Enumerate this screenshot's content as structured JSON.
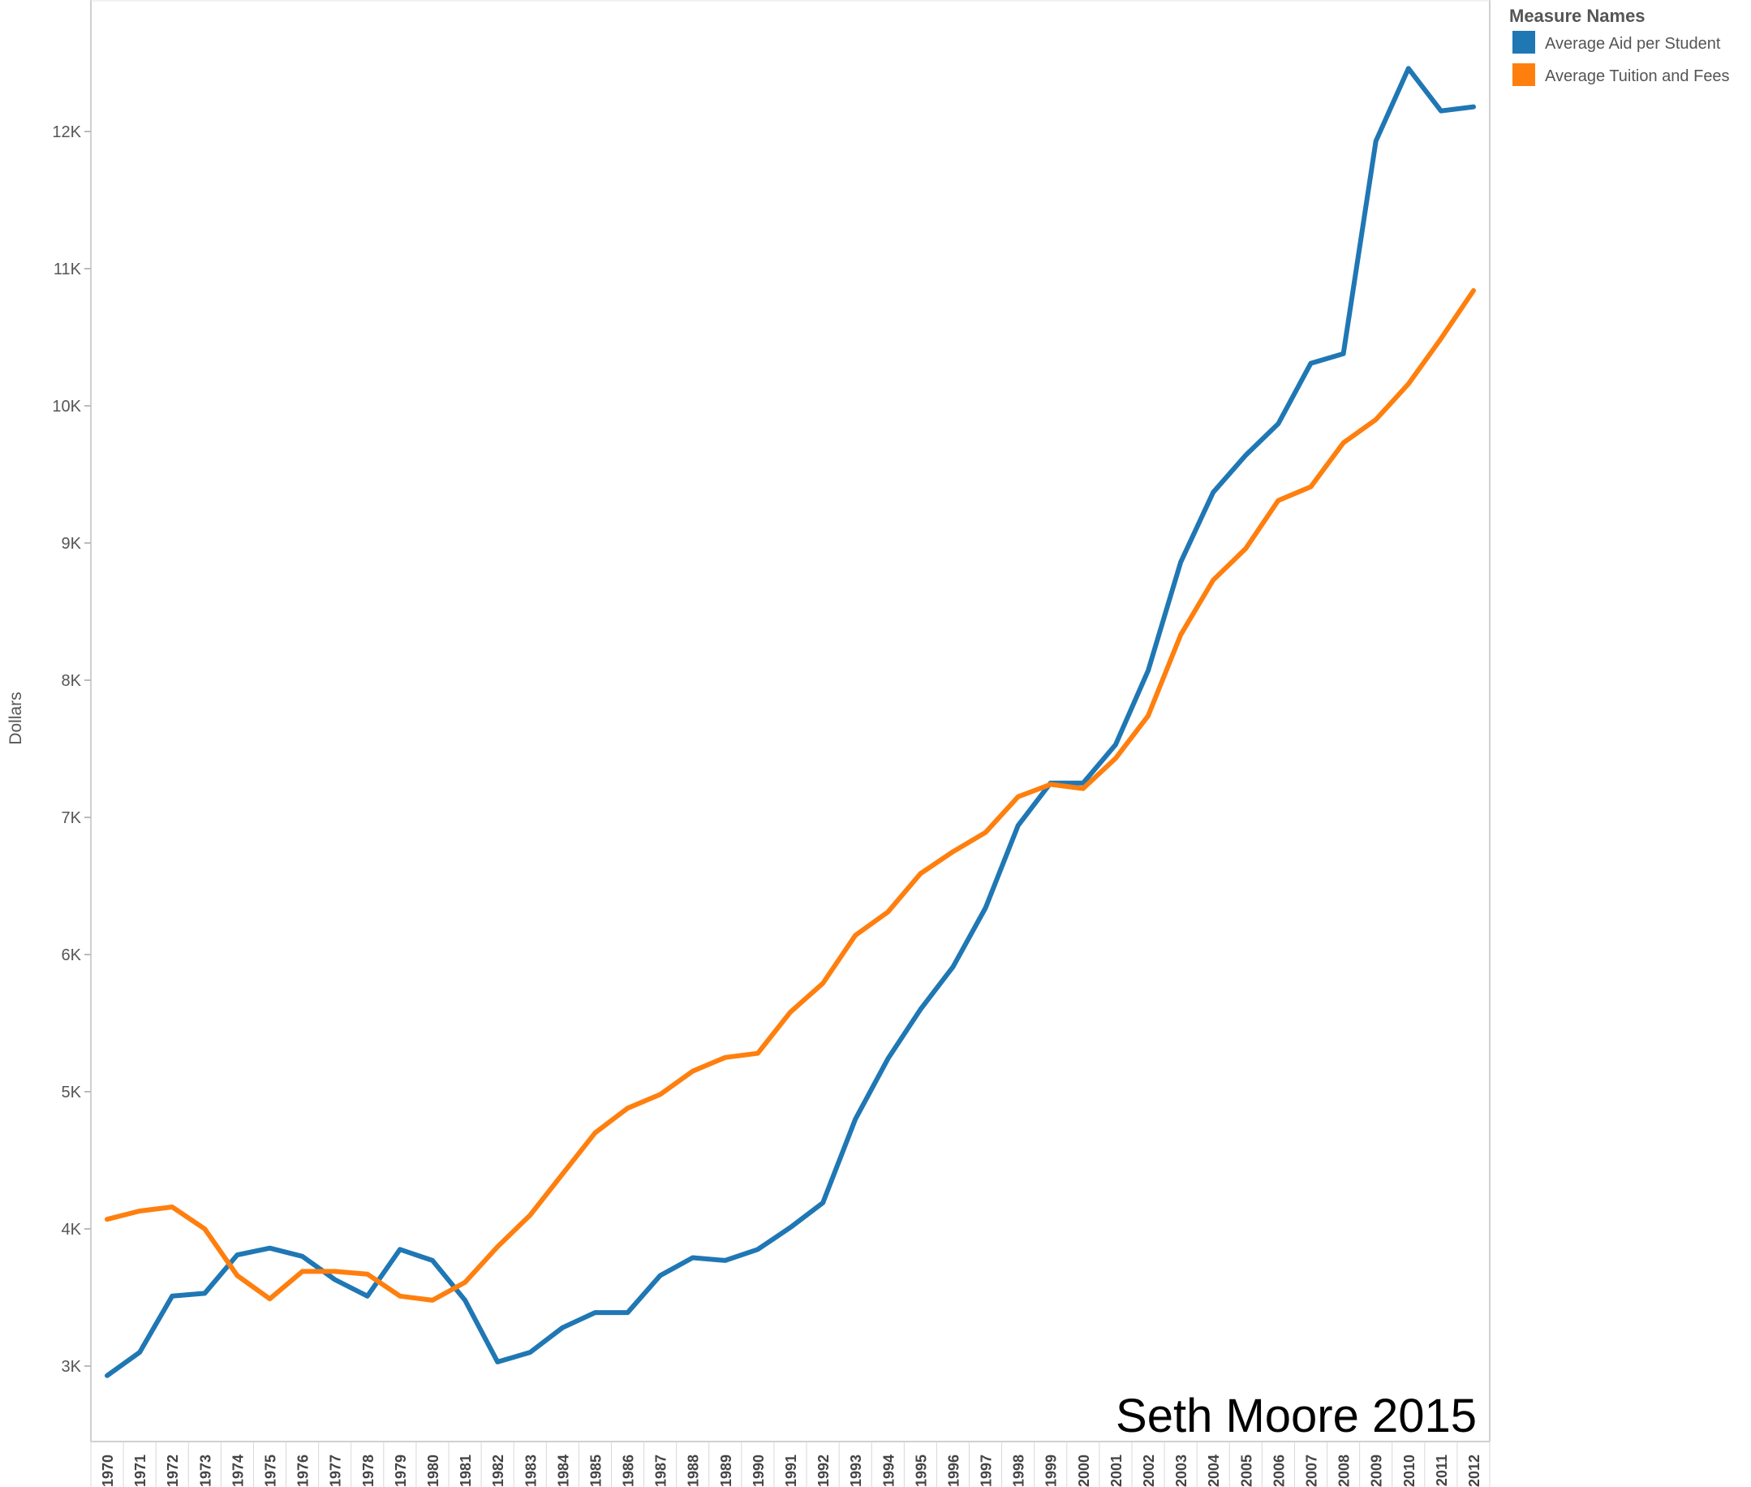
{
  "chart_data": {
    "type": "line",
    "title": "",
    "xlabel": "",
    "ylabel": "Dollars",
    "ylim": [
      2500,
      13000
    ],
    "y_ticks": [
      3000,
      4000,
      5000,
      6000,
      7000,
      8000,
      9000,
      10000,
      11000,
      12000
    ],
    "y_tick_labels": [
      "3K",
      "4K",
      "5K",
      "6K",
      "7K",
      "8K",
      "9K",
      "10K",
      "11K",
      "12K"
    ],
    "grid": false,
    "legend_title": "Measure Names",
    "legend_position": "top-right",
    "categories": [
      "1970",
      "1971",
      "1972",
      "1973",
      "1974",
      "1975",
      "1976",
      "1977",
      "1978",
      "1979",
      "1980",
      "1981",
      "1982",
      "1983",
      "1984",
      "1985",
      "1986",
      "1987",
      "1988",
      "1989",
      "1990",
      "1991",
      "1992",
      "1993",
      "1994",
      "1995",
      "1996",
      "1997",
      "1998",
      "1999",
      "2000",
      "2001",
      "2002",
      "2003",
      "2004",
      "2005",
      "2006",
      "2007",
      "2008",
      "2009",
      "2010",
      "2011",
      "2012"
    ],
    "series": [
      {
        "name": "Average Aid per Student",
        "color": "#1f77b4",
        "values": [
          2930,
          3100,
          3510,
          3530,
          3810,
          3860,
          3800,
          3630,
          3510,
          3850,
          3770,
          3480,
          3030,
          3100,
          3280,
          3390,
          3390,
          3660,
          3790,
          3770,
          3850,
          4010,
          4190,
          4800,
          5240,
          5600,
          5910,
          6340,
          6940,
          7250,
          7250,
          7530,
          8070,
          8860,
          9370,
          9640,
          9870,
          10310,
          10380,
          11930,
          12460,
          12150,
          12180
        ]
      },
      {
        "name": "Average Tuition and Fees",
        "color": "#ff7f0e",
        "values": [
          4070,
          4130,
          4160,
          4000,
          3660,
          3490,
          3690,
          3690,
          3670,
          3510,
          3480,
          3610,
          3870,
          4100,
          4400,
          4700,
          4880,
          4980,
          5150,
          5250,
          5280,
          5580,
          5790,
          6140,
          6310,
          6590,
          6750,
          6890,
          7150,
          7240,
          7210,
          7430,
          7740,
          8330,
          8730,
          8960,
          9310,
          9410,
          9730,
          9900,
          10160,
          10490,
          10840
        ]
      }
    ],
    "annotation": "Seth Moore 2015"
  }
}
